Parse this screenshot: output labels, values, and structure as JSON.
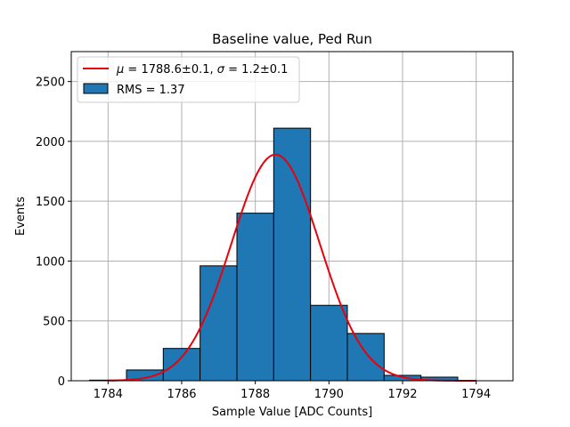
{
  "chart_data": {
    "type": "bar",
    "title": "Baseline value, Ped Run",
    "xlabel": "Sample Value [ADC Counts]",
    "ylabel": "Events",
    "xlim": [
      1783.0,
      1795.0
    ],
    "ylim": [
      0,
      2750
    ],
    "xticks": [
      1784,
      1786,
      1788,
      1790,
      1792,
      1794
    ],
    "yticks": [
      0,
      500,
      1000,
      1500,
      2000,
      2500
    ],
    "grid": true,
    "legend_position": "upper-left",
    "bar_color": "#1f77b4",
    "fit_color": "#e8000b",
    "histogram": {
      "name": "RMS = 1.37",
      "bins": [
        {
          "x0": 1783.5,
          "x1": 1784.5,
          "value": 5
        },
        {
          "x0": 1784.5,
          "x1": 1785.5,
          "value": 90
        },
        {
          "x0": 1785.5,
          "x1": 1786.5,
          "value": 270
        },
        {
          "x0": 1786.5,
          "x1": 1787.5,
          "value": 960
        },
        {
          "x0": 1787.5,
          "x1": 1788.5,
          "value": 1400
        },
        {
          "x0": 1788.5,
          "x1": 1789.5,
          "value": 2110
        },
        {
          "x0": 1789.5,
          "x1": 1790.5,
          "value": 630
        },
        {
          "x0": 1790.5,
          "x1": 1791.5,
          "value": 395
        },
        {
          "x0": 1791.5,
          "x1": 1792.5,
          "value": 45
        },
        {
          "x0": 1792.5,
          "x1": 1793.5,
          "value": 30
        }
      ]
    },
    "fit": {
      "name": "$\\mu = 1788.6 \\pm 0.1$, $\\sigma = 1.2 \\pm 0.1$",
      "mu": 1788.55,
      "sigma": 1.2,
      "amplitude": 1890,
      "x_range": [
        1784.0,
        1794.0
      ]
    }
  },
  "legend": {
    "fit_label": {
      "mu_sym": "μ",
      "mu_text": " = 1788.6±0.1, ",
      "sigma_sym": "σ",
      "sigma_text": " = 1.2±0.1"
    },
    "hist_label": "RMS = 1.37"
  }
}
